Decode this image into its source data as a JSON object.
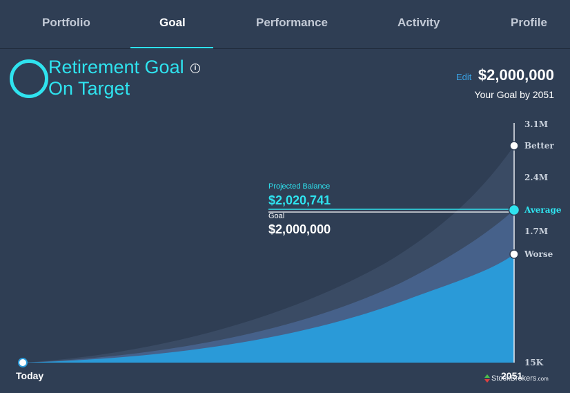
{
  "nav": {
    "tabs": [
      {
        "label": "Portfolio"
      },
      {
        "label": "Goal"
      },
      {
        "label": "Performance"
      },
      {
        "label": "Activity"
      },
      {
        "label": "Profile"
      }
    ],
    "active": "Goal"
  },
  "goal": {
    "title": "Retirement Goal",
    "status": "On Target",
    "info_icon": "info-icon",
    "edit_label": "Edit",
    "amount": "$2,000,000",
    "by_label": "Your Goal by 2051"
  },
  "projection": {
    "projected_label": "Projected Balance",
    "projected_value": "$2,020,741",
    "goal_label": "Goal",
    "goal_value": "$2,000,000"
  },
  "chart_data": {
    "type": "area",
    "x_start": "Today",
    "x_end": "2051",
    "y_ticks": [
      "3.1M",
      "2.4M",
      "1.7M",
      "15K"
    ],
    "scenarios": [
      {
        "name": "Better",
        "end_value": 2750000
      },
      {
        "name": "Average",
        "end_value": 2020741
      },
      {
        "name": "Worse",
        "end_value": 1450000
      }
    ],
    "goal_value": 2000000,
    "colors": {
      "better": "#3a4b64",
      "average": "#46618a",
      "worse": "#2a9ad8",
      "accent": "#2fe3ef"
    }
  },
  "watermark": {
    "text": "StockBrokers",
    "suffix": ".com"
  }
}
